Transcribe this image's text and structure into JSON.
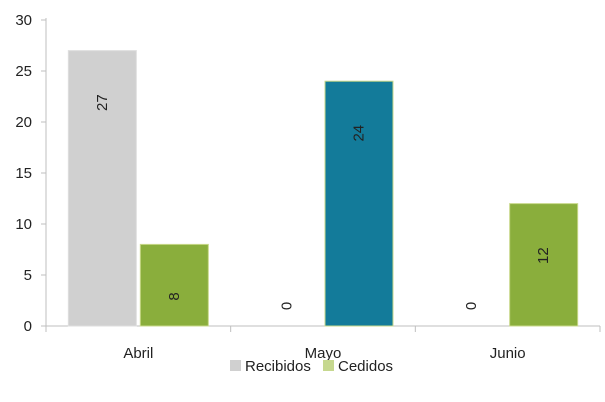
{
  "chart_data": {
    "type": "bar",
    "categories": [
      "Abril",
      "Mayo",
      "Junio"
    ],
    "series": [
      {
        "name": "Recibidos",
        "values": [
          27,
          0,
          0
        ],
        "color": "#d0d0d0"
      },
      {
        "name": "Cedidos",
        "values": [
          8,
          24,
          12
        ],
        "color": "#8aae3c"
      }
    ],
    "highlight": {
      "category": "Mayo",
      "series": "Cedidos",
      "color": "#137b9a"
    },
    "ylim": [
      0,
      30
    ],
    "yticks": [
      0,
      5,
      10,
      15,
      20,
      25,
      30
    ],
    "title": "",
    "xlabel": "",
    "ylabel": "",
    "grid": false,
    "legend_position": "bottom"
  }
}
